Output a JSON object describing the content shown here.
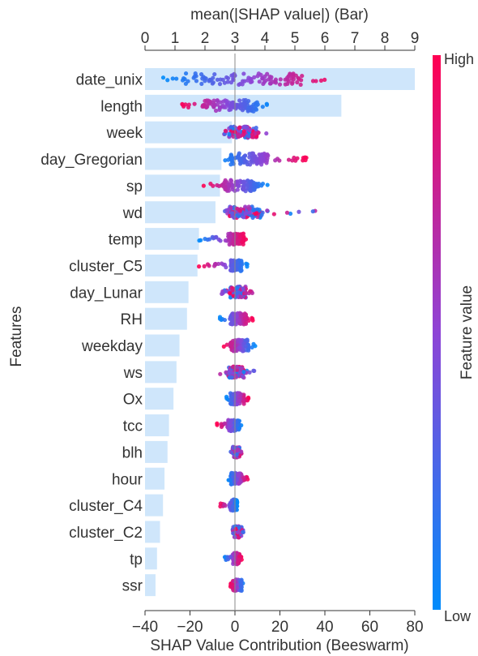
{
  "chart_data": {
    "type": "bar",
    "top_axis": {
      "label": "mean(|SHAP value|) (Bar)",
      "range": [
        0,
        9
      ],
      "ticks": [
        0,
        1,
        2,
        3,
        4,
        5,
        6,
        7,
        8,
        9
      ]
    },
    "bottom_axis": {
      "label": "SHAP Value Contribution (Beeswarm)",
      "range": [
        -40,
        80
      ],
      "ticks": [
        -40,
        -20,
        0,
        20,
        40,
        60,
        80
      ]
    },
    "ylabel": "Features",
    "categories": [
      "date_unix",
      "length",
      "week",
      "day_Gregorian",
      "sp",
      "wd",
      "temp",
      "cluster_C5",
      "day_Lunar",
      "RH",
      "weekday",
      "ws",
      "Ox",
      "tcc",
      "blh",
      "hour",
      "cluster_C4",
      "cluster_C2",
      "tp",
      "ssr"
    ],
    "bar_values": [
      9.0,
      6.55,
      2.9,
      2.55,
      2.5,
      2.35,
      1.8,
      1.75,
      1.45,
      1.4,
      1.15,
      1.05,
      0.95,
      0.8,
      0.75,
      0.65,
      0.6,
      0.5,
      0.4,
      0.35
    ],
    "beeswarm": [
      {
        "min": -32,
        "max": 47,
        "core": [
          -22,
          30
        ]
      },
      {
        "min": -25,
        "max": 16,
        "core": [
          -15,
          10
        ]
      },
      {
        "min": -5,
        "max": 16,
        "core": [
          -3,
          10
        ]
      },
      {
        "min": -7,
        "max": 32,
        "core": [
          -2,
          15
        ]
      },
      {
        "min": -14,
        "max": 15,
        "core": [
          -6,
          9
        ]
      },
      {
        "min": -8,
        "max": 39,
        "core": [
          -3,
          12
        ]
      },
      {
        "min": -16,
        "max": 5,
        "core": [
          -3,
          4
        ]
      },
      {
        "min": -16,
        "max": 6,
        "core": [
          -2,
          3
        ]
      },
      {
        "min": -6,
        "max": 8,
        "core": [
          -2,
          5
        ]
      },
      {
        "min": -7,
        "max": 8,
        "core": [
          -2,
          5
        ]
      },
      {
        "min": -5,
        "max": 9,
        "core": [
          -2,
          6
        ]
      },
      {
        "min": -7,
        "max": 9,
        "core": [
          -3,
          4
        ]
      },
      {
        "min": -4,
        "max": 6,
        "core": [
          -2,
          4
        ]
      },
      {
        "min": -8,
        "max": 3,
        "core": [
          -3,
          2
        ]
      },
      {
        "min": -2,
        "max": 3,
        "core": [
          -1,
          2
        ]
      },
      {
        "min": -3,
        "max": 6,
        "core": [
          -2,
          3
        ]
      },
      {
        "min": -7,
        "max": 1,
        "core": [
          -2,
          1
        ]
      },
      {
        "min": -1,
        "max": 4,
        "core": [
          -1,
          3
        ]
      },
      {
        "min": -5,
        "max": 3,
        "core": [
          -1,
          2
        ]
      },
      {
        "min": -2,
        "max": 4,
        "core": [
          -1,
          3
        ]
      }
    ],
    "colorbar": {
      "title": "Feature value",
      "high_label": "High",
      "low_label": "Low",
      "high_color": "#ff0052",
      "low_color": "#008bfb"
    },
    "bar_color": "#cfe6fb"
  }
}
